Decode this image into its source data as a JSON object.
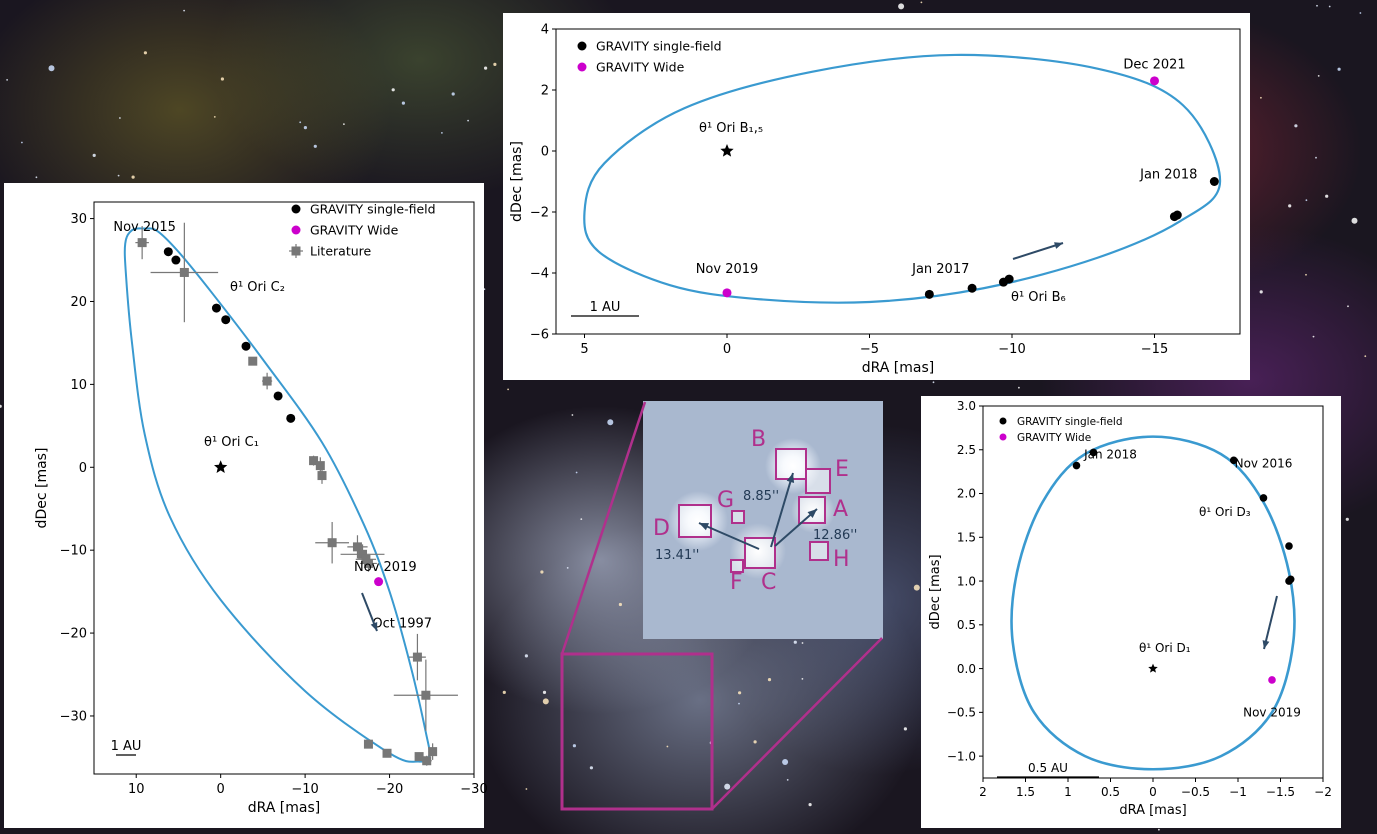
{
  "colors": {
    "orbit": "#3a9ad0",
    "single_field": "#000000",
    "wide": "#cc00cc",
    "literature": "#777777",
    "highlight": "#b0308c",
    "arrow": "#2e4a66"
  },
  "inset": {
    "labels": [
      "B",
      "E",
      "A",
      "G",
      "D",
      "C",
      "F",
      "H"
    ],
    "separations": [
      "8.85''",
      "12.86''",
      "13.41''"
    ]
  },
  "chart_data": [
    {
      "type": "scatter",
      "panel": "theta1 Ori C",
      "xlabel": "dRA [mas]",
      "ylabel": "dDec [mas]",
      "xlim": [
        15,
        -30
      ],
      "ylim": [
        -37,
        32
      ],
      "xticks": [
        10,
        0,
        -10,
        -20,
        -30
      ],
      "yticks": [
        30,
        20,
        10,
        0,
        -10,
        -20,
        -30
      ],
      "legend": {
        "placement": "top-right",
        "entries": [
          "GRAVITY single-field",
          "GRAVITY Wide",
          "Literature"
        ]
      },
      "scale_bar": "1 AU",
      "primary": {
        "label": "θ¹ Ori C₁",
        "x": 0,
        "y": 0
      },
      "secondary_label": "θ¹ Ori C₂",
      "annotations": [
        {
          "text": "Nov 2015",
          "x": 9,
          "y": 28.5
        },
        {
          "text": "Nov 2019",
          "x": -19.5,
          "y": -12.5
        },
        {
          "text": "Oct 1997",
          "x": -21.5,
          "y": -19.3
        }
      ],
      "orbit": [
        [
          7.5,
          28.5
        ],
        [
          5.0,
          26.0
        ],
        [
          1.0,
          21.0
        ],
        [
          -5.0,
          13.0
        ],
        [
          -12.0,
          3.0
        ],
        [
          -17.0,
          -7.0
        ],
        [
          -20.0,
          -15.0
        ],
        [
          -22.5,
          -24.0
        ],
        [
          -24.3,
          -32.0
        ],
        [
          -24.7,
          -34.8
        ],
        [
          -23.5,
          -35.5
        ],
        [
          -20.0,
          -34.5
        ],
        [
          -10.0,
          -27.0
        ],
        [
          0.0,
          -16.0
        ],
        [
          6.0,
          -6.0
        ],
        [
          9.0,
          4.0
        ],
        [
          10.5,
          15.0
        ],
        [
          11.2,
          23.0
        ],
        [
          11.3,
          27.0
        ],
        [
          10.5,
          28.6
        ],
        [
          9.0,
          28.8
        ],
        [
          7.5,
          28.5
        ]
      ],
      "series": [
        {
          "name": "GRAVITY single-field",
          "points": [
            [
              6.2,
              26.0
            ],
            [
              5.3,
              25.0
            ],
            [
              0.5,
              19.2
            ],
            [
              -0.6,
              17.8
            ],
            [
              -3.0,
              14.6
            ],
            [
              -6.8,
              8.6
            ],
            [
              -8.3,
              5.9
            ]
          ]
        },
        {
          "name": "GRAVITY Wide",
          "points": [
            [
              -18.7,
              -13.8
            ]
          ]
        },
        {
          "name": "Literature",
          "points": [
            [
              9.3,
              27.1,
              0.8,
              2.0
            ],
            [
              4.3,
              23.5,
              4.0,
              6.0
            ],
            [
              -3.8,
              12.8,
              0.4,
              0.5
            ],
            [
              -5.5,
              10.4,
              0.6,
              1.0
            ],
            [
              -11.0,
              0.8,
              0.4,
              0.6
            ],
            [
              -11.8,
              0.2,
              0.3,
              1.0
            ],
            [
              -12.0,
              -1.0,
              0.4,
              1.0
            ],
            [
              -13.2,
              -9.1,
              2.0,
              2.5
            ],
            [
              -16.2,
              -9.6,
              1.2,
              1.4
            ],
            [
              -16.8,
              -10.5,
              2.6,
              1.2
            ],
            [
              -17.2,
              -11.1,
              1.2,
              1.0
            ],
            [
              -17.5,
              -11.6,
              1.0,
              1.0
            ],
            [
              -23.3,
              -22.9,
              1.0,
              2.8
            ],
            [
              -24.3,
              -27.5,
              3.8,
              4.3
            ],
            [
              -17.5,
              -33.4,
              0.5,
              0.5
            ],
            [
              -19.7,
              -34.5,
              0.5,
              0.5
            ],
            [
              -23.5,
              -34.9,
              0.5,
              0.5
            ],
            [
              -24.4,
              -35.4,
              0.6,
              0.6
            ],
            [
              -25.1,
              -34.3,
              0.5,
              1.0
            ]
          ]
        }
      ]
    },
    {
      "type": "scatter",
      "panel": "theta1 Ori B",
      "xlabel": "dRA [mas]",
      "ylabel": "dDec [mas]",
      "xlim": [
        6,
        -18
      ],
      "ylim": [
        -6,
        4
      ],
      "xticks": [
        5,
        0,
        -5,
        -10,
        -15
      ],
      "yticks": [
        4,
        2,
        0,
        -2,
        -4,
        -6
      ],
      "legend": {
        "placement": "top-left",
        "entries": [
          "GRAVITY single-field",
          "GRAVITY Wide"
        ]
      },
      "scale_bar": "1 AU",
      "primary": {
        "label": "θ¹ Ori B₁,₅",
        "x": 0,
        "y": 0
      },
      "secondary_label": "θ¹ Ori B₆",
      "annotations": [
        {
          "text": "Dec 2021",
          "x": -15,
          "y": 2.7
        },
        {
          "text": "Jan 2018",
          "x": -15.5,
          "y": -0.9
        },
        {
          "text": "Jan 2017",
          "x": -7.5,
          "y": -4.0
        },
        {
          "text": "Nov 2019",
          "x": 0,
          "y": -4.0
        }
      ],
      "orbit": [
        [
          -17.3,
          -1.0
        ],
        [
          -16.0,
          1.5
        ],
        [
          -13.0,
          2.7
        ],
        [
          -8.0,
          3.15
        ],
        [
          -3.0,
          2.6
        ],
        [
          1.5,
          1.4
        ],
        [
          4.3,
          -0.4
        ],
        [
          5.0,
          -2.0
        ],
        [
          4.5,
          -3.3
        ],
        [
          2.0,
          -4.4
        ],
        [
          -1.0,
          -4.85
        ],
        [
          -5.0,
          -4.95
        ],
        [
          -9.0,
          -4.5
        ],
        [
          -13.0,
          -3.5
        ],
        [
          -15.9,
          -2.3
        ],
        [
          -17.3,
          -1.0
        ]
      ],
      "series": [
        {
          "name": "GRAVITY single-field",
          "points": [
            [
              -17.1,
              -1.0
            ],
            [
              -15.8,
              -2.1
            ],
            [
              -15.7,
              -2.15
            ],
            [
              -9.9,
              -4.2
            ],
            [
              -9.7,
              -4.3
            ],
            [
              -8.6,
              -4.5
            ],
            [
              -7.1,
              -4.7
            ]
          ]
        },
        {
          "name": "GRAVITY Wide",
          "points": [
            [
              -15.0,
              2.3
            ],
            [
              0.0,
              -4.65
            ]
          ]
        }
      ]
    },
    {
      "type": "scatter",
      "panel": "theta1 Ori D",
      "xlabel": "dRA [mas]",
      "ylabel": "dDec [mas]",
      "xlim": [
        2.0,
        -2.0
      ],
      "ylim": [
        -1.25,
        3.0
      ],
      "xticks": [
        2.0,
        1.5,
        1.0,
        0.5,
        0.0,
        -0.5,
        -1.0,
        -1.5,
        -2.0
      ],
      "yticks": [
        3.0,
        2.5,
        2.0,
        1.5,
        1.0,
        0.5,
        0.0,
        -0.5,
        -1.0
      ],
      "legend": {
        "placement": "top-left",
        "entries": [
          "GRAVITY single-field",
          "GRAVITY Wide"
        ]
      },
      "scale_bar": "0.5 AU",
      "primary": {
        "label": "θ¹ Ori D₁",
        "x": 0,
        "y": 0
      },
      "secondary_label": "θ¹ Ori D₃",
      "annotations": [
        {
          "text": "Jan 2018",
          "x": 0.5,
          "y": 2.4
        },
        {
          "text": "Nov 2016",
          "x": -1.3,
          "y": 2.3
        },
        {
          "text": "Nov 2019",
          "x": -1.4,
          "y": -0.55
        }
      ],
      "orbit": [
        [
          0.0,
          2.65
        ],
        [
          -0.8,
          2.45
        ],
        [
          -1.3,
          1.9
        ],
        [
          -1.6,
          1.1
        ],
        [
          -1.65,
          0.3
        ],
        [
          -1.4,
          -0.5
        ],
        [
          -0.8,
          -1.0
        ],
        [
          0.0,
          -1.15
        ],
        [
          0.8,
          -1.0
        ],
        [
          1.4,
          -0.5
        ],
        [
          1.65,
          0.3
        ],
        [
          1.6,
          1.1
        ],
        [
          1.3,
          1.9
        ],
        [
          0.8,
          2.45
        ],
        [
          0.0,
          2.65
        ]
      ],
      "series": [
        {
          "name": "GRAVITY single-field",
          "points": [
            [
              0.9,
              2.32
            ],
            [
              0.7,
              2.47
            ],
            [
              -0.95,
              2.38
            ],
            [
              -1.3,
              1.95
            ],
            [
              -1.6,
              1.4
            ],
            [
              -1.6,
              1.0
            ],
            [
              -1.62,
              1.02
            ]
          ]
        },
        {
          "name": "GRAVITY Wide",
          "points": [
            [
              -1.4,
              -0.13
            ]
          ]
        }
      ]
    }
  ]
}
